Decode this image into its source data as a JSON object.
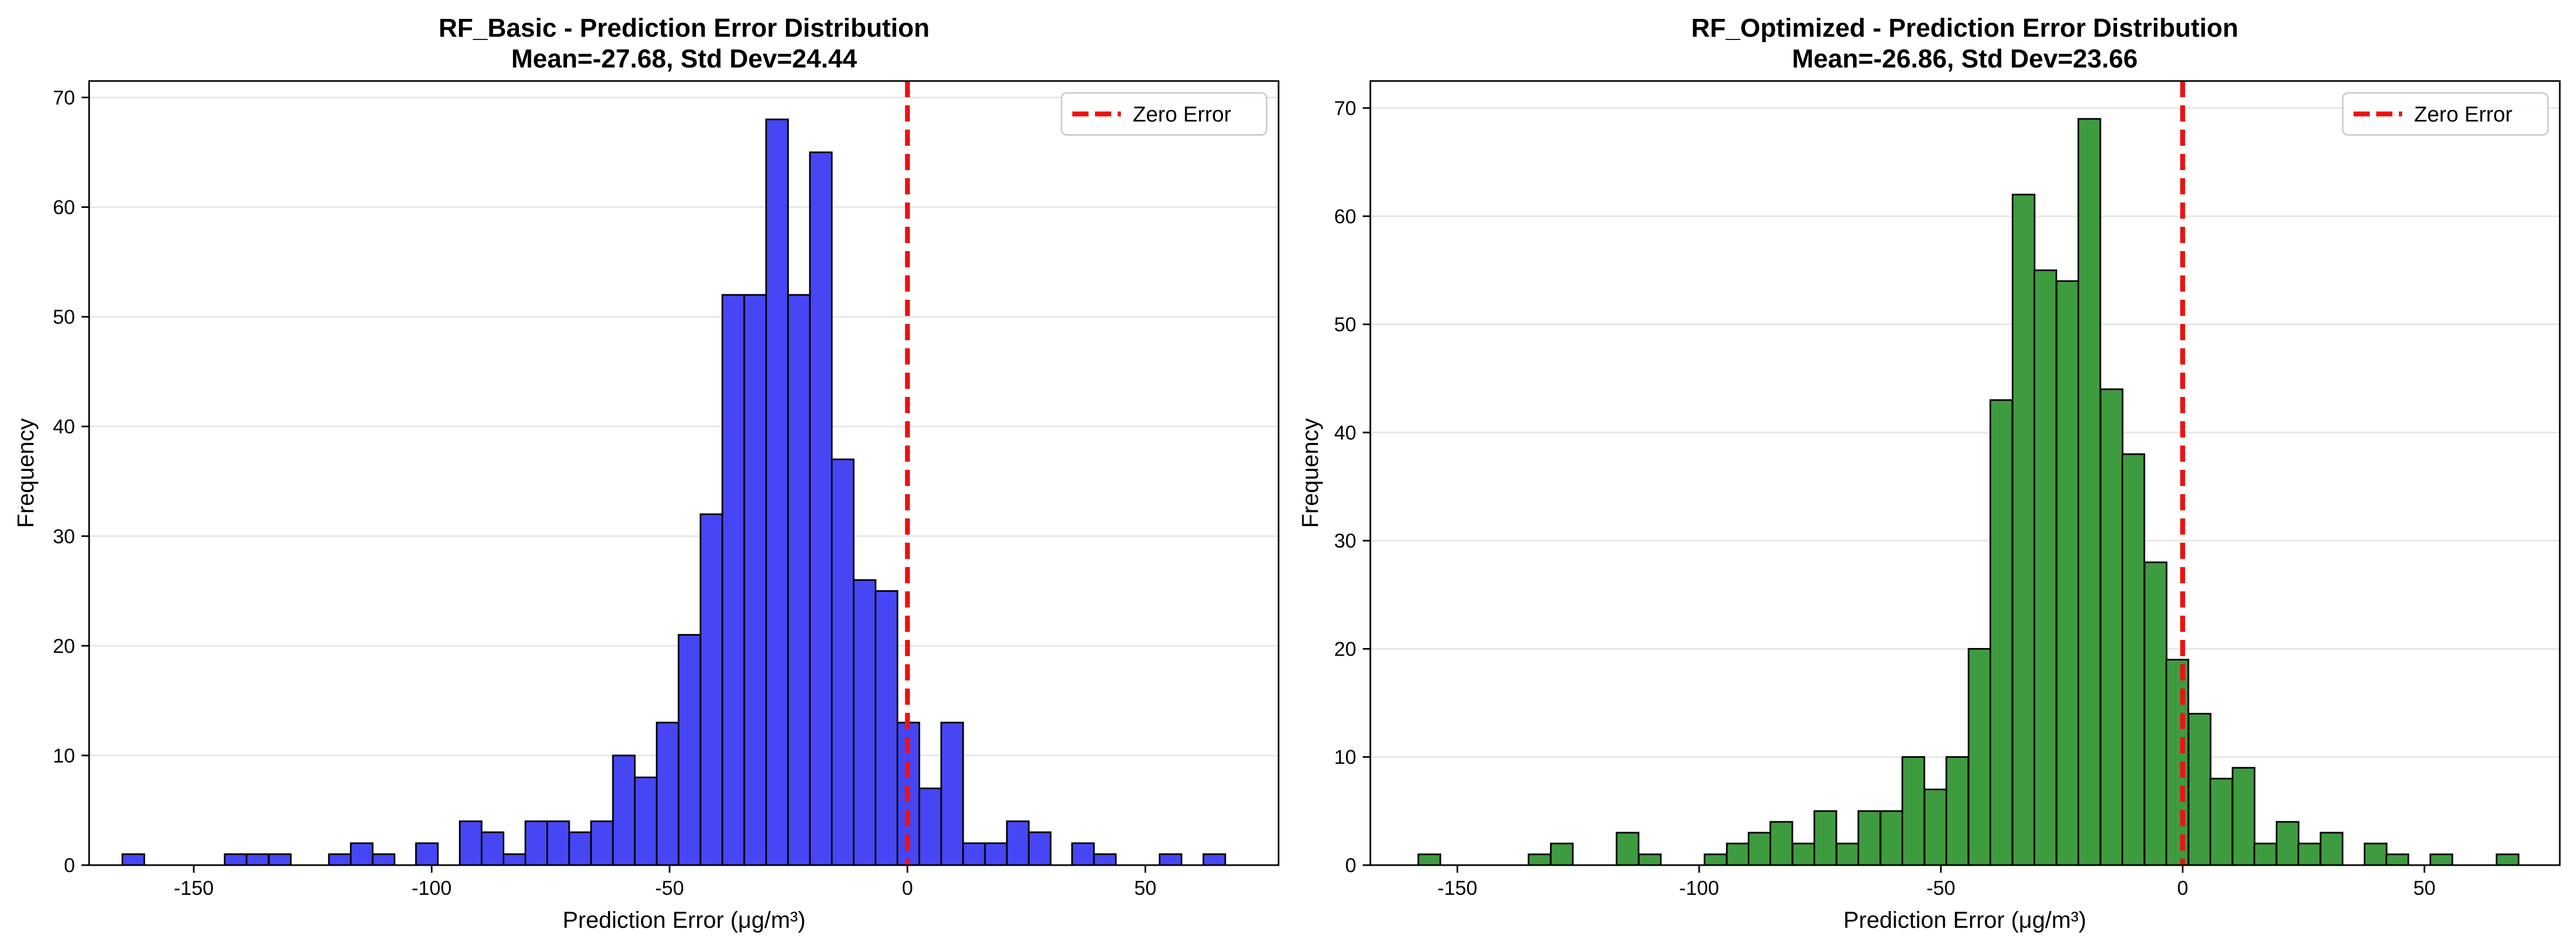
{
  "colors": {
    "left_bar_fill": "#4646f5",
    "right_bar_fill": "#3f9b3f",
    "bar_edge": "#000000",
    "zero_line": "#ee1111",
    "grid": "#e6e6e6"
  },
  "chart_data": [
    {
      "type": "bar",
      "title": "RF_Basic - Prediction Error Distribution",
      "subtitle": "Mean=-27.68, Std Dev=24.44",
      "xlabel": "Prediction Error (μg/m³)",
      "ylabel": "Frequency",
      "xlim": [
        -172,
        78
      ],
      "ylim": [
        0,
        71.5
      ],
      "xticks": [
        -150,
        -100,
        -50,
        0,
        50
      ],
      "xtick_labels": [
        "-150",
        "-100",
        "-50",
        "0",
        "50"
      ],
      "yticks": [
        0,
        10,
        20,
        30,
        40,
        50,
        60,
        70
      ],
      "grid": "y",
      "legend": {
        "position": "top-right",
        "label": "Zero Error"
      },
      "bin_start": -165.0,
      "bin_width": 4.6,
      "values": [
        1,
        0,
        0,
        0,
        0,
        0,
        0,
        0,
        0,
        0,
        0,
        0,
        0,
        0,
        1,
        0,
        1,
        0,
        0,
        0,
        1,
        0,
        0,
        0,
        0,
        0,
        1,
        0,
        2,
        0,
        1,
        0,
        0,
        0,
        0,
        0,
        2,
        0,
        0,
        0,
        4,
        0,
        3,
        0,
        1,
        0,
        4,
        0,
        4,
        0,
        3,
        0,
        4,
        0,
        10,
        0,
        8,
        0,
        13,
        0,
        21,
        0,
        32,
        0,
        52,
        0,
        52,
        0,
        68,
        0,
        52,
        0,
        65,
        0,
        37,
        0,
        26,
        0,
        25,
        0,
        13,
        0,
        7,
        0,
        13,
        0,
        2,
        0,
        2,
        0,
        4,
        0,
        3,
        0,
        0,
        0,
        2,
        0,
        1,
        0,
        0,
        0,
        0,
        0,
        1,
        0,
        0,
        0,
        1,
        0
      ],
      "bars": [
        {
          "x": -162.7,
          "y": 1
        },
        {
          "x": -141.2,
          "y": 1
        },
        {
          "x": -136.6,
          "y": 1
        },
        {
          "x": -131.9,
          "y": 1
        },
        {
          "x": -119.3,
          "y": 1
        },
        {
          "x": -114.7,
          "y": 2
        },
        {
          "x": -110.1,
          "y": 1
        },
        {
          "x": -101.0,
          "y": 2
        },
        {
          "x": -91.8,
          "y": 4
        },
        {
          "x": -87.2,
          "y": 3
        },
        {
          "x": -82.6,
          "y": 1
        },
        {
          "x": -78.0,
          "y": 4
        },
        {
          "x": -73.4,
          "y": 4
        },
        {
          "x": -68.8,
          "y": 3
        },
        {
          "x": -64.2,
          "y": 4
        },
        {
          "x": -59.6,
          "y": 10
        },
        {
          "x": -55.0,
          "y": 8
        },
        {
          "x": -50.4,
          "y": 13
        },
        {
          "x": -45.8,
          "y": 21
        },
        {
          "x": -41.2,
          "y": 32
        },
        {
          "x": -36.6,
          "y": 52
        },
        {
          "x": -32.0,
          "y": 52
        },
        {
          "x": -27.4,
          "y": 68
        },
        {
          "x": -22.8,
          "y": 52
        },
        {
          "x": -18.2,
          "y": 65
        },
        {
          "x": -13.6,
          "y": 37
        },
        {
          "x": -9.0,
          "y": 26
        },
        {
          "x": -4.4,
          "y": 25
        },
        {
          "x": 0.2,
          "y": 13
        },
        {
          "x": 4.8,
          "y": 7
        },
        {
          "x": 9.4,
          "y": 13
        },
        {
          "x": 14.0,
          "y": 2
        },
        {
          "x": 18.6,
          "y": 2
        },
        {
          "x": 23.2,
          "y": 4
        },
        {
          "x": 27.8,
          "y": 3
        },
        {
          "x": 36.9,
          "y": 2
        },
        {
          "x": 41.5,
          "y": 1
        },
        {
          "x": 55.3,
          "y": 1
        },
        {
          "x": 64.5,
          "y": 1
        }
      ],
      "bar_width": 4.6,
      "reference_line": {
        "x": 0,
        "label": "Zero Error"
      }
    },
    {
      "type": "bar",
      "title": "RF_Optimized - Prediction Error Distribution",
      "subtitle": "Mean=-26.86, Std Dev=23.66",
      "xlabel": "Prediction Error (μg/m³)",
      "ylabel": "Frequency",
      "xlim": [
        -168,
        78
      ],
      "ylim": [
        0,
        72.5
      ],
      "xticks": [
        -150,
        -100,
        -50,
        0,
        50
      ],
      "xtick_labels": [
        "-150",
        "-100",
        "-50",
        "0",
        "50"
      ],
      "yticks": [
        0,
        10,
        20,
        30,
        40,
        50,
        60,
        70
      ],
      "grid": "y",
      "legend": {
        "position": "top-right",
        "label": "Zero Error"
      },
      "bars": [
        {
          "x": -155.8,
          "y": 1
        },
        {
          "x": -133.0,
          "y": 1
        },
        {
          "x": -128.4,
          "y": 2
        },
        {
          "x": -114.8,
          "y": 3
        },
        {
          "x": -110.2,
          "y": 1
        },
        {
          "x": -96.6,
          "y": 1
        },
        {
          "x": -92.0,
          "y": 2
        },
        {
          "x": -87.5,
          "y": 3
        },
        {
          "x": -83.0,
          "y": 4
        },
        {
          "x": -78.4,
          "y": 2
        },
        {
          "x": -73.9,
          "y": 5
        },
        {
          "x": -69.3,
          "y": 2
        },
        {
          "x": -64.8,
          "y": 5
        },
        {
          "x": -60.2,
          "y": 5
        },
        {
          "x": -55.7,
          "y": 10
        },
        {
          "x": -51.1,
          "y": 7
        },
        {
          "x": -46.6,
          "y": 10
        },
        {
          "x": -42.0,
          "y": 20
        },
        {
          "x": -37.5,
          "y": 43
        },
        {
          "x": -32.9,
          "y": 62
        },
        {
          "x": -28.4,
          "y": 55
        },
        {
          "x": -23.8,
          "y": 54
        },
        {
          "x": -19.3,
          "y": 69
        },
        {
          "x": -14.7,
          "y": 44
        },
        {
          "x": -10.2,
          "y": 38
        },
        {
          "x": -5.6,
          "y": 28
        },
        {
          "x": -1.1,
          "y": 19
        },
        {
          "x": 3.5,
          "y": 14
        },
        {
          "x": 8.0,
          "y": 8
        },
        {
          "x": 12.6,
          "y": 9
        },
        {
          "x": 17.1,
          "y": 2
        },
        {
          "x": 21.7,
          "y": 4
        },
        {
          "x": 26.2,
          "y": 2
        },
        {
          "x": 30.8,
          "y": 3
        },
        {
          "x": 39.9,
          "y": 2
        },
        {
          "x": 44.4,
          "y": 1
        },
        {
          "x": 53.5,
          "y": 1
        },
        {
          "x": 67.2,
          "y": 1
        }
      ],
      "bar_width": 4.55,
      "reference_line": {
        "x": 0,
        "label": "Zero Error"
      }
    }
  ]
}
